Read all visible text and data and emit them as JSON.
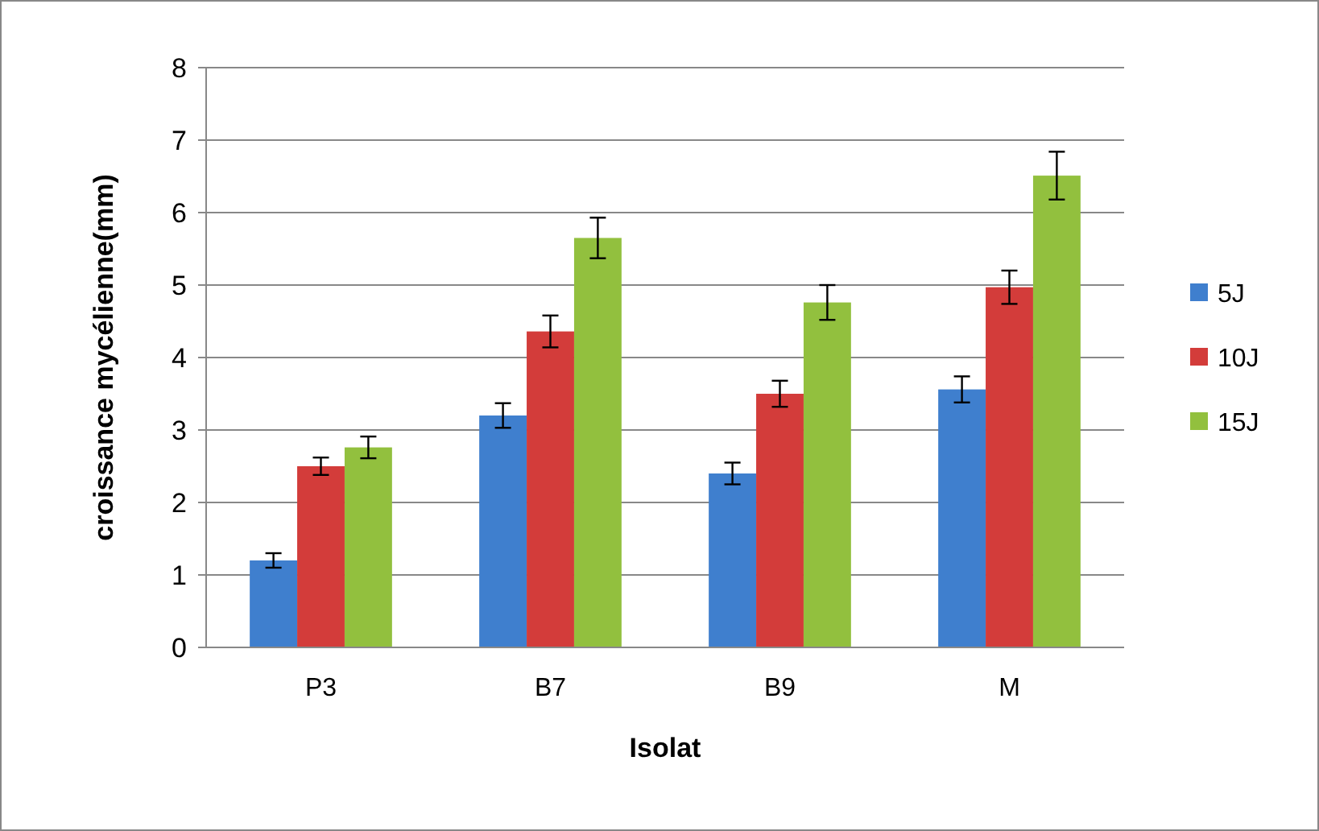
{
  "chart_data": {
    "type": "bar",
    "xlabel": "Isolat",
    "ylabel": "croissance mycélienne(mm)",
    "categories": [
      "P3",
      "B7",
      "B9",
      "M"
    ],
    "series": [
      {
        "name": "5J",
        "color": "#3f7fce",
        "values": [
          1.2,
          3.2,
          2.4,
          3.56
        ],
        "errors": [
          0.1,
          0.17,
          0.15,
          0.18
        ]
      },
      {
        "name": "10J",
        "color": "#d33c3a",
        "values": [
          2.5,
          4.36,
          3.5,
          4.97
        ],
        "errors": [
          0.12,
          0.22,
          0.18,
          0.23
        ]
      },
      {
        "name": "15J",
        "color": "#92c03e",
        "values": [
          2.76,
          5.65,
          4.76,
          6.51
        ],
        "errors": [
          0.15,
          0.28,
          0.24,
          0.33
        ]
      }
    ],
    "ylim": [
      0,
      8
    ],
    "yticks": [
      0,
      1,
      2,
      3,
      4,
      5,
      6,
      7,
      8
    ],
    "grid": "y",
    "legend": "right"
  }
}
